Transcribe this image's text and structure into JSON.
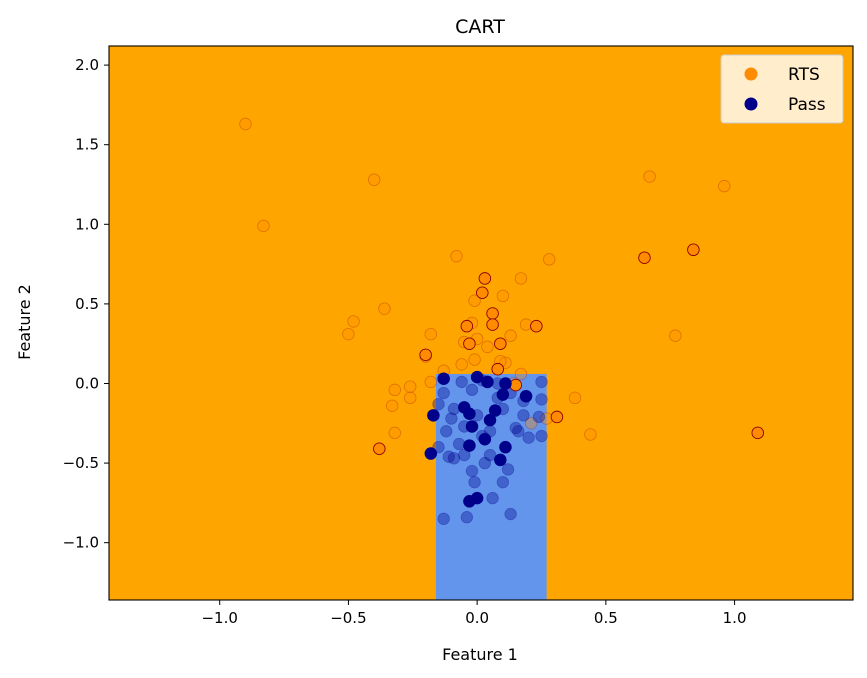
{
  "chart_data": {
    "type": "scatter",
    "title": "CART",
    "xlabel": "Feature 1",
    "ylabel": "Feature 2",
    "xlim": [
      -1.43,
      1.46
    ],
    "ylim": [
      -1.36,
      2.12
    ],
    "xticks": [
      -1.0,
      -0.5,
      0.0,
      0.5,
      1.0
    ],
    "xtick_labels": [
      "−1.0",
      "−0.5",
      "0.0",
      "0.5",
      "1.0"
    ],
    "yticks": [
      -1.0,
      -0.5,
      0.0,
      0.5,
      1.0,
      1.5,
      2.0
    ],
    "ytick_labels": [
      "−1.0",
      "−0.5",
      "0.0",
      "0.5",
      "1.0",
      "1.5",
      "2.0"
    ],
    "grid": false,
    "legend_position": "top-right",
    "background_region": {
      "class": "RTS",
      "color": "#ffa500"
    },
    "regions": [
      {
        "class": "Pass",
        "x": [
          -0.16,
          0.27
        ],
        "y": [
          -1.36,
          0.06
        ],
        "color": "#6495ed"
      }
    ],
    "series": [
      {
        "name": "RTS",
        "color": "#ff8c00",
        "edge_color": "#8b0000",
        "faint_points": [
          [
            -0.9,
            1.63
          ],
          [
            -0.4,
            1.28
          ],
          [
            -0.83,
            0.99
          ],
          [
            0.67,
            1.3
          ],
          [
            0.96,
            1.24
          ],
          [
            -0.08,
            0.8
          ],
          [
            0.17,
            0.66
          ],
          [
            0.28,
            0.78
          ],
          [
            -0.48,
            0.39
          ],
          [
            -0.5,
            0.31
          ],
          [
            -0.36,
            0.47
          ],
          [
            -0.18,
            0.31
          ],
          [
            -0.01,
            0.52
          ],
          [
            0.1,
            0.55
          ],
          [
            0.77,
            0.3
          ],
          [
            -0.05,
            0.26
          ],
          [
            0.04,
            0.23
          ],
          [
            0.13,
            0.3
          ],
          [
            0.19,
            0.37
          ],
          [
            -0.13,
            0.08
          ],
          [
            -0.2,
            0.17
          ],
          [
            -0.06,
            0.12
          ],
          [
            0.11,
            0.13
          ],
          [
            0.17,
            0.06
          ],
          [
            -0.26,
            -0.02
          ],
          [
            -0.32,
            -0.04
          ],
          [
            -0.26,
            -0.09
          ],
          [
            -0.33,
            -0.14
          ],
          [
            -0.32,
            -0.31
          ],
          [
            0.38,
            -0.09
          ],
          [
            0.44,
            -0.32
          ],
          [
            0.27,
            -0.22
          ],
          [
            0.21,
            -0.25
          ],
          [
            -0.02,
            0.38
          ],
          [
            0.09,
            0.14
          ],
          [
            0.0,
            0.28
          ],
          [
            0.08,
            0.09
          ],
          [
            -0.01,
            0.15
          ],
          [
            -0.18,
            0.01
          ],
          [
            0.14,
            0.0
          ]
        ],
        "highlight_points": [
          [
            0.03,
            0.66
          ],
          [
            0.02,
            0.57
          ],
          [
            0.06,
            0.44
          ],
          [
            0.06,
            0.37
          ],
          [
            -0.04,
            0.36
          ],
          [
            0.23,
            0.36
          ],
          [
            -0.03,
            0.25
          ],
          [
            0.09,
            0.25
          ],
          [
            -0.2,
            0.18
          ],
          [
            0.08,
            0.09
          ],
          [
            0.15,
            -0.01
          ],
          [
            0.31,
            -0.21
          ],
          [
            -0.38,
            -0.41
          ],
          [
            0.65,
            0.79
          ],
          [
            0.84,
            0.84
          ],
          [
            1.09,
            -0.31
          ]
        ]
      },
      {
        "name": "Pass",
        "color": "#00008b",
        "edge_color": "#00008b",
        "faint_points": [
          [
            -0.15,
            -0.13
          ],
          [
            -0.1,
            -0.22
          ],
          [
            -0.05,
            -0.27
          ],
          [
            0.02,
            -0.33
          ],
          [
            -0.12,
            -0.3
          ],
          [
            -0.07,
            -0.38
          ],
          [
            0.05,
            -0.45
          ],
          [
            0.1,
            -0.16
          ],
          [
            0.15,
            -0.28
          ],
          [
            0.2,
            -0.34
          ],
          [
            0.24,
            -0.21
          ],
          [
            -0.13,
            -0.06
          ],
          [
            -0.02,
            -0.04
          ],
          [
            0.08,
            -0.09
          ],
          [
            0.13,
            -0.06
          ],
          [
            0.18,
            -0.11
          ],
          [
            -0.09,
            -0.47
          ],
          [
            -0.02,
            -0.55
          ],
          [
            0.1,
            -0.62
          ],
          [
            -0.04,
            -0.84
          ],
          [
            -0.13,
            -0.85
          ],
          [
            0.13,
            -0.82
          ],
          [
            0.03,
            -0.5
          ],
          [
            -0.06,
            0.01
          ],
          [
            0.02,
            0.02
          ],
          [
            0.08,
            0.0
          ],
          [
            0.25,
            0.01
          ],
          [
            0.25,
            -0.1
          ],
          [
            0.25,
            -0.33
          ],
          [
            -0.11,
            -0.46
          ],
          [
            -0.15,
            -0.4
          ],
          [
            0.12,
            -0.54
          ],
          [
            0.06,
            -0.72
          ],
          [
            -0.01,
            -0.62
          ],
          [
            0.16,
            -0.3
          ],
          [
            -0.09,
            -0.16
          ],
          [
            0.0,
            -0.2
          ],
          [
            0.05,
            -0.3
          ],
          [
            0.18,
            -0.2
          ],
          [
            -0.05,
            -0.45
          ]
        ],
        "highlight_points": [
          [
            -0.13,
            0.03
          ],
          [
            0.0,
            0.04
          ],
          [
            0.04,
            0.01
          ],
          [
            0.11,
            0.0
          ],
          [
            -0.17,
            -0.2
          ],
          [
            -0.05,
            -0.15
          ],
          [
            -0.03,
            -0.19
          ],
          [
            0.07,
            -0.17
          ],
          [
            0.05,
            -0.23
          ],
          [
            0.1,
            -0.07
          ],
          [
            0.19,
            -0.08
          ],
          [
            -0.02,
            -0.27
          ],
          [
            0.03,
            -0.35
          ],
          [
            -0.03,
            -0.39
          ],
          [
            0.11,
            -0.4
          ],
          [
            0.09,
            -0.48
          ],
          [
            -0.18,
            -0.44
          ],
          [
            0.0,
            -0.72
          ],
          [
            -0.03,
            -0.74
          ]
        ]
      }
    ]
  }
}
